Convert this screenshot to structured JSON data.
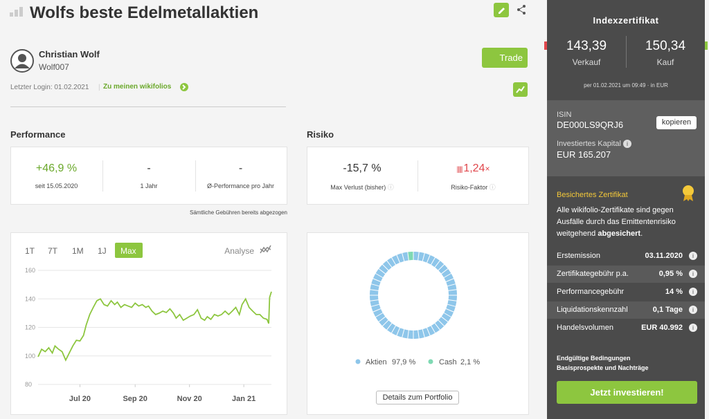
{
  "header": {
    "title": "Wolfs beste Edelmetallaktien"
  },
  "trader": {
    "name": "Christian Wolf",
    "handle": "Wolf007",
    "last_login": "Letzter Login: 01.02.2021",
    "link": "Zu meinen wikifolios",
    "trade_button": "Trade"
  },
  "performance": {
    "heading": "Performance",
    "items": [
      {
        "value": "+46,9 %",
        "label": "seit 15.05.2020"
      },
      {
        "value": "-",
        "label": "1 Jahr"
      },
      {
        "value": "-",
        "label": "Ø-Performance pro Jahr"
      }
    ],
    "note": "Sämtliche Gebühren bereits abgezogen"
  },
  "risk": {
    "heading": "Risiko",
    "items": [
      {
        "value": "-15,7 %",
        "label": "Max Verlust (bisher)"
      },
      {
        "value": "1,24",
        "suffix": "×",
        "label": "Risiko-Faktor"
      }
    ]
  },
  "chart_data": [
    {
      "type": "line",
      "range_buttons": [
        "1T",
        "7T",
        "1M",
        "1J",
        "Max"
      ],
      "active_range": 4,
      "analysis_label": "Analyse",
      "color": "#8dc63f",
      "grid": true,
      "x": [
        0,
        4,
        8,
        12,
        16,
        19,
        23,
        27,
        31,
        35,
        39,
        43,
        47,
        51,
        54,
        58,
        62,
        66,
        70,
        74,
        78,
        82,
        86,
        89,
        93,
        97,
        101,
        105,
        109,
        113,
        117,
        121,
        124,
        128,
        132,
        136,
        140,
        144,
        148,
        152,
        155,
        159,
        163,
        167,
        171,
        175,
        179,
        183,
        187,
        190,
        194,
        198,
        202,
        206,
        210,
        214,
        218,
        222,
        226,
        229,
        233,
        237,
        241,
        245,
        249,
        253,
        257,
        259,
        260,
        262
      ],
      "values": [
        99.4,
        104.7,
        103,
        105.7,
        102,
        107,
        104.7,
        103,
        97,
        102,
        107,
        111,
        110.5,
        114.4,
        121.7,
        129,
        134,
        138.7,
        140,
        136,
        135,
        138.7,
        136,
        137.7,
        134,
        136,
        135,
        134,
        137,
        135,
        136,
        134,
        135,
        131.4,
        129,
        130,
        131.4,
        130.4,
        133,
        130,
        126.5,
        129,
        125,
        126.5,
        128,
        129,
        132.4,
        126.5,
        125,
        127.5,
        125.6,
        129,
        128,
        129,
        131.4,
        129,
        131.4,
        134,
        129,
        136,
        140,
        134,
        131.4,
        129,
        129,
        126.5,
        125.6,
        122.7,
        141,
        145
      ],
      "xlim": [
        0,
        262
      ],
      "xticks": [
        {
          "value": 47,
          "label": "Jul 20"
        },
        {
          "value": 109,
          "label": "Sep 20"
        },
        {
          "value": 170,
          "label": "Nov 20"
        },
        {
          "value": 231,
          "label": "Jan 21"
        }
      ],
      "ylim": [
        80,
        160
      ],
      "yticks": [
        80,
        100,
        120,
        140,
        160
      ]
    },
    {
      "type": "pie",
      "categories": [
        "Aktien",
        "Cash"
      ],
      "values": [
        97.9,
        2.1
      ],
      "value_labels": [
        "97,9 %",
        "2,1 %"
      ],
      "colors": [
        "#8ec6ea",
        "#7fd9b3"
      ],
      "button": "Details zum Portfolio"
    }
  ],
  "certificate": {
    "heading": "Indexzertifikat",
    "sell": {
      "value": "143,39",
      "label": "Verkauf"
    },
    "buy": {
      "value": "150,34",
      "label": "Kauf"
    },
    "timestamp": "per 01.02.2021 um 09:49 · in EUR",
    "isin_label": "ISIN",
    "isin": "DE000LS9QRJ6",
    "copy_button": "kopieren",
    "capital_label": "Investiertes Kapital",
    "capital": "EUR 165.207",
    "secured_heading": "Besichertes Zertifikat",
    "secured_text": "Alle wikifolio-Zertifikate sind gegen Ausfälle durch das Emittentenrisiko weitgehend",
    "secured_bold": "abgesichert",
    "secured_end": ".",
    "rows": [
      [
        "Erstemission",
        "03.11.2020"
      ],
      [
        "Zertifikategebühr p.a.",
        "0,95 %"
      ],
      [
        "Performancegebühr",
        "14 %"
      ],
      [
        "Liquidationskennzahl",
        "0,1 Tage"
      ],
      [
        "Handelsvolumen",
        "EUR 40.992"
      ]
    ],
    "links": [
      "Endgültige Bedingungen",
      "Basisprospekte und Nachträge"
    ],
    "invest_button": "Jetzt investieren!"
  }
}
